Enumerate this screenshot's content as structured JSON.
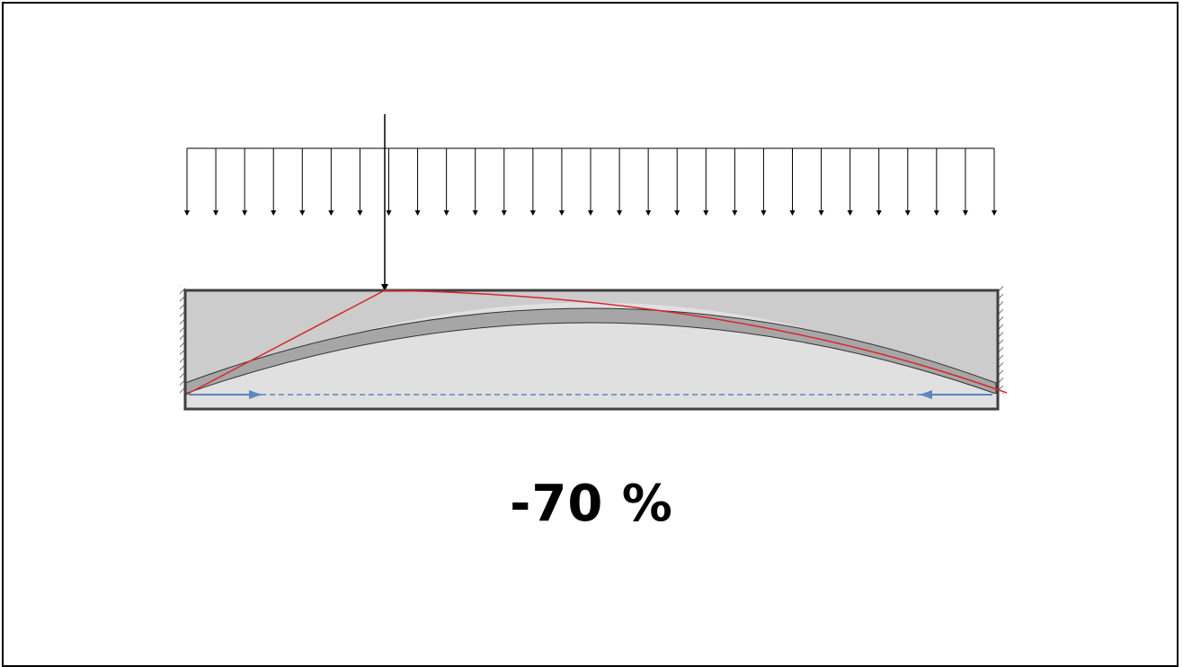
{
  "diagram": {
    "reduction_label": "-70 %",
    "distributed_load_arrow_count": 29,
    "colors": {
      "slab_fill": "#cccccc",
      "arch_fill": "#a6a6a6",
      "inner_fill": "#e0e0e0",
      "outline": "#404040",
      "thrust_line": "#d9262b",
      "tie": "#5b87c0",
      "load_arrows": "#000000"
    }
  }
}
